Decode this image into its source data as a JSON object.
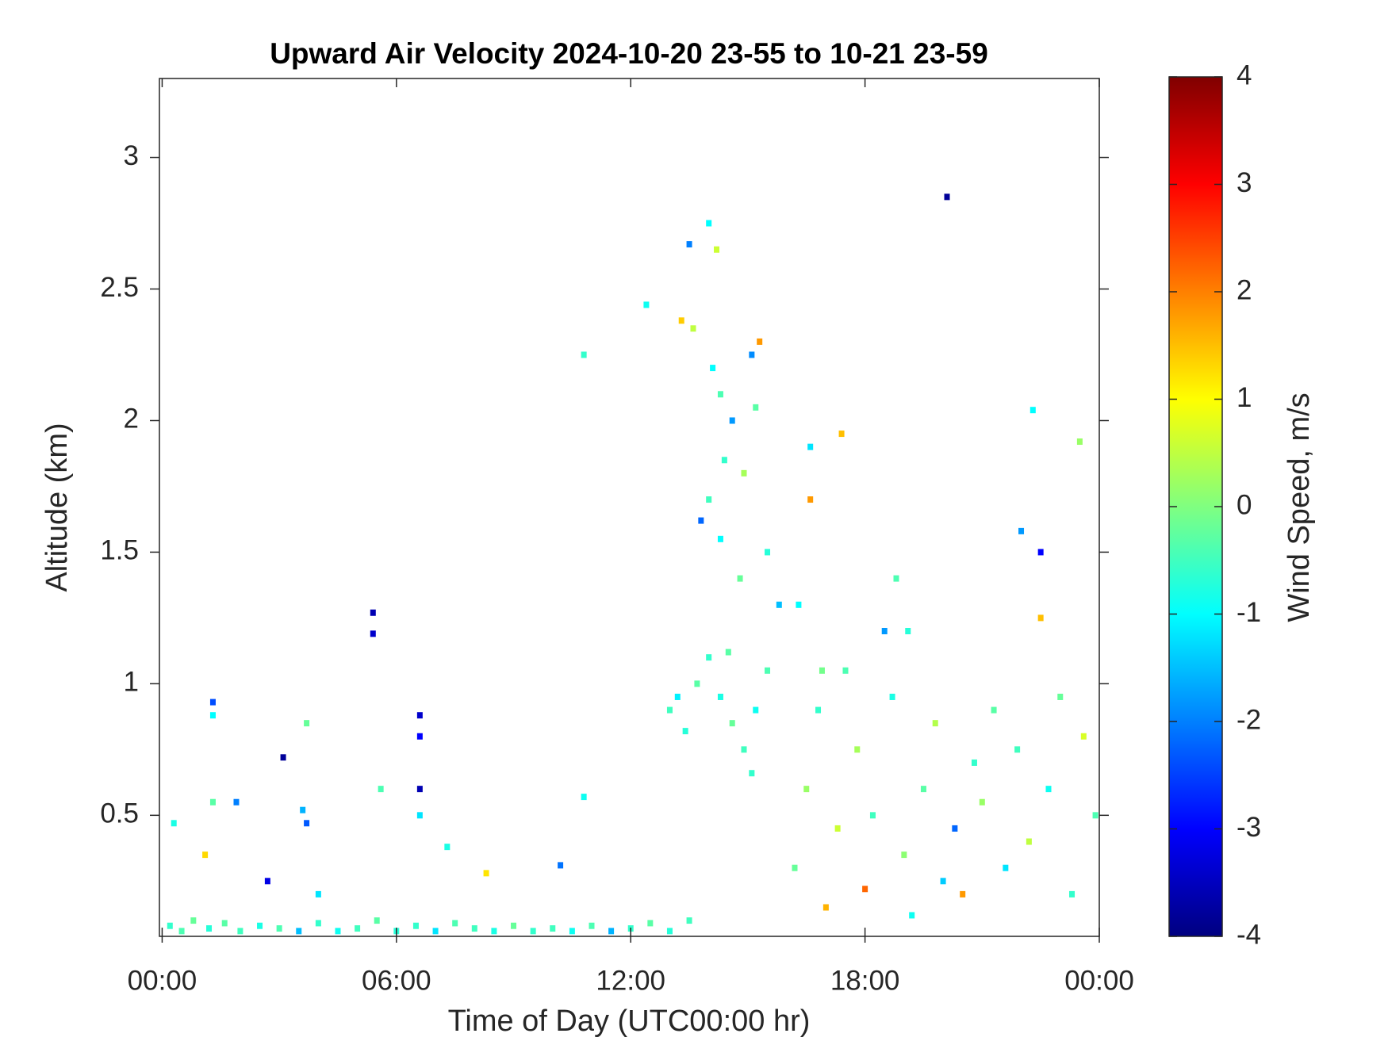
{
  "chart_data": {
    "type": "heatmap",
    "title": "Upward Air Velocity 2024-10-20 23-55 to 10-21 23-59",
    "x_label": "Time of Day (UTC00:00 hr)",
    "y_label": "Altitude (km)",
    "colorbar_label": "Wind Speed, m/s",
    "colormap": "jet",
    "x": [
      0.2,
      0.5,
      0.8,
      1.2,
      1.6,
      2.0,
      2.5,
      3.0,
      3.5,
      4.0,
      4.5,
      5.0,
      5.5,
      6.0,
      6.5,
      7.0,
      7.5,
      8.0,
      8.5,
      9.0,
      9.5,
      10.0,
      10.5,
      11.0,
      11.5,
      12.0,
      12.5,
      13.0,
      13.5,
      1.3,
      1.3,
      1.3,
      0.3,
      1.1,
      1.9,
      2.7,
      3.1,
      3.7,
      3.6,
      3.7,
      4.0,
      5.4,
      5.4,
      5.6,
      6.6,
      6.6,
      6.6,
      6.6,
      7.3,
      8.3,
      10.2,
      10.8,
      10.8,
      12.4,
      13.5,
      14.0,
      14.2,
      13.3,
      13.6,
      14.1,
      14.3,
      14.6,
      14.4,
      14.9,
      15.2,
      15.3,
      15.1,
      14.0,
      14.3,
      14.8,
      15.5,
      13.8,
      15.8,
      13.0,
      13.4,
      13.7,
      14.0,
      14.3,
      14.6,
      14.9,
      15.2,
      15.5,
      15.1,
      14.5,
      13.2,
      16.2,
      16.5,
      16.8,
      17.0,
      17.3,
      17.5,
      17.8,
      18.0,
      18.2,
      18.5,
      18.7,
      19.0,
      19.2,
      19.5,
      19.8,
      20.0,
      20.3,
      20.5,
      20.8,
      21.0,
      21.3,
      21.6,
      21.9,
      22.2,
      22.5,
      22.7,
      23.0,
      23.3,
      23.6,
      23.9,
      22.0,
      22.5,
      22.3,
      23.5,
      20.1,
      16.3,
      17.4,
      16.6,
      18.8,
      16.6,
      16.9,
      19.1
    ],
    "y": [
      0.08,
      0.06,
      0.1,
      0.07,
      0.09,
      0.06,
      0.08,
      0.07,
      0.06,
      0.09,
      0.06,
      0.07,
      0.1,
      0.06,
      0.08,
      0.06,
      0.09,
      0.07,
      0.06,
      0.08,
      0.06,
      0.07,
      0.06,
      0.08,
      0.06,
      0.07,
      0.09,
      0.06,
      0.1,
      0.93,
      0.88,
      0.55,
      0.47,
      0.35,
      0.55,
      0.25,
      0.72,
      0.85,
      0.52,
      0.47,
      0.2,
      1.27,
      1.19,
      0.6,
      0.88,
      0.8,
      0.6,
      0.5,
      0.38,
      0.28,
      0.31,
      0.57,
      2.25,
      2.44,
      2.67,
      2.75,
      2.65,
      2.38,
      2.35,
      2.2,
      2.1,
      2.0,
      1.85,
      1.8,
      2.05,
      2.3,
      2.25,
      1.7,
      1.55,
      1.4,
      1.5,
      1.62,
      1.3,
      0.9,
      0.82,
      1.0,
      1.1,
      0.95,
      0.85,
      0.75,
      0.9,
      1.05,
      0.66,
      1.12,
      0.95,
      0.3,
      0.6,
      0.9,
      0.15,
      0.45,
      1.05,
      0.75,
      0.22,
      0.5,
      1.2,
      0.95,
      0.35,
      0.12,
      0.6,
      0.85,
      0.25,
      0.45,
      0.2,
      0.7,
      0.55,
      0.9,
      0.3,
      0.75,
      0.4,
      1.25,
      0.6,
      0.95,
      0.2,
      0.8,
      0.5,
      1.58,
      1.5,
      2.04,
      1.92,
      2.85,
      1.3,
      1.95,
      1.7,
      1.4,
      1.9,
      1.05,
      1.2
    ],
    "values": [
      -0.6,
      -0.4,
      -0.2,
      -0.7,
      -0.3,
      -0.5,
      -0.8,
      -0.4,
      -1.5,
      -0.6,
      -0.9,
      -0.5,
      -0.3,
      -0.7,
      -0.6,
      -1.2,
      -0.4,
      -0.5,
      -0.8,
      -0.2,
      -0.6,
      -0.5,
      -0.9,
      -0.4,
      -1.6,
      -0.6,
      -0.3,
      -0.7,
      -0.5,
      -2.4,
      -1.0,
      -0.3,
      -0.8,
      1.3,
      -2.0,
      -3.2,
      -3.8,
      -0.2,
      -1.6,
      -2.3,
      -1.2,
      -3.6,
      -3.4,
      -0.4,
      -3.4,
      -3.0,
      -3.6,
      -1.2,
      -0.8,
      1.2,
      -2.1,
      -0.9,
      -0.6,
      -0.9,
      -2.0,
      -1.0,
      0.6,
      1.4,
      0.5,
      -1.0,
      -0.4,
      -1.8,
      -0.6,
      0.3,
      -0.3,
      1.8,
      -1.9,
      -0.5,
      -1.0,
      -0.2,
      -0.7,
      -2.2,
      -1.5,
      -0.5,
      -0.7,
      -0.3,
      -0.6,
      -0.8,
      -0.2,
      -0.5,
      -0.9,
      -0.4,
      -0.6,
      -0.3,
      -1.1,
      -0.2,
      0.2,
      -0.6,
      1.6,
      0.6,
      -0.4,
      0.3,
      2.2,
      -0.5,
      -1.8,
      -0.8,
      0.1,
      -0.9,
      -0.3,
      0.4,
      -1.4,
      -2.2,
      1.8,
      -0.6,
      0.2,
      -0.3,
      -1.2,
      -0.5,
      0.5,
      1.5,
      -0.9,
      -0.2,
      -0.6,
      0.7,
      -0.4,
      -1.8,
      -3.0,
      -1.0,
      0.2,
      -3.8,
      -1.0,
      1.5,
      1.8,
      -0.4,
      -1.2,
      -0.1,
      -0.7
    ],
    "xlim": [
      -0.07,
      24
    ],
    "xticks": [
      {
        "value": 0,
        "label": "00:00"
      },
      {
        "value": 6,
        "label": "06:00"
      },
      {
        "value": 12,
        "label": "12:00"
      },
      {
        "value": 18,
        "label": "18:00"
      },
      {
        "value": 24,
        "label": "00:00"
      }
    ],
    "ylim": [
      0.04,
      3.3
    ],
    "yticks": [
      0.5,
      1,
      1.5,
      2,
      2.5,
      3
    ],
    "clim": [
      -4,
      4
    ],
    "cticks": [
      -4,
      -3,
      -2,
      -1,
      0,
      1,
      2,
      3,
      4
    ]
  }
}
